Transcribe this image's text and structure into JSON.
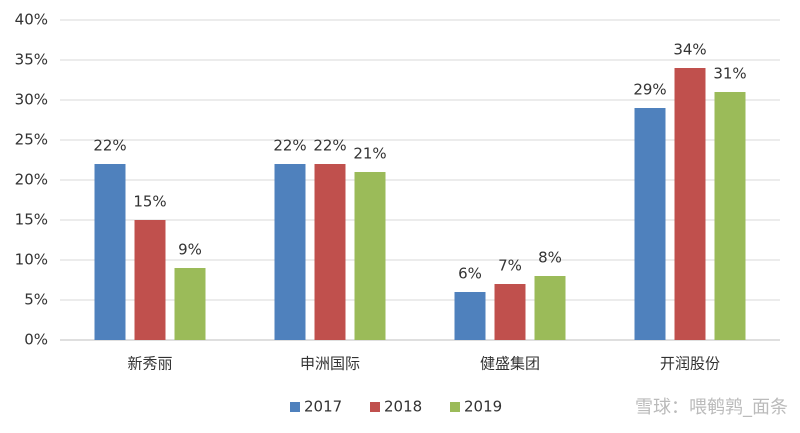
{
  "chart_data": {
    "type": "bar",
    "categories": [
      "新秀丽",
      "申洲国际",
      "健盛集团",
      "开润股份"
    ],
    "series": [
      {
        "name": "2017",
        "color": "#4f81bd",
        "values": [
          22,
          22,
          6,
          29
        ],
        "value_labels": [
          "22%",
          "22%",
          "6%",
          "29%"
        ]
      },
      {
        "name": "2018",
        "color": "#c0504d",
        "values": [
          15,
          22,
          7,
          34
        ],
        "value_labels": [
          "15%",
          "22%",
          "7%",
          "34%"
        ]
      },
      {
        "name": "2019",
        "color": "#9bbb59",
        "values": [
          9,
          21,
          8,
          31
        ],
        "value_labels": [
          "9%",
          "21%",
          "8%",
          "31%"
        ]
      }
    ],
    "ylim": [
      0,
      40
    ],
    "yticks": [
      {
        "value": 0,
        "label": "0%"
      },
      {
        "value": 5,
        "label": "5%"
      },
      {
        "value": 10,
        "label": "10%"
      },
      {
        "value": 15,
        "label": "15%"
      },
      {
        "value": 20,
        "label": "20%"
      },
      {
        "value": 25,
        "label": "25%"
      },
      {
        "value": 30,
        "label": "30%"
      },
      {
        "value": 35,
        "label": "35%"
      },
      {
        "value": 40,
        "label": "40%"
      }
    ],
    "grid": true,
    "legend": "bottom",
    "watermark": "雪球：喂鹌鹑_面条"
  }
}
